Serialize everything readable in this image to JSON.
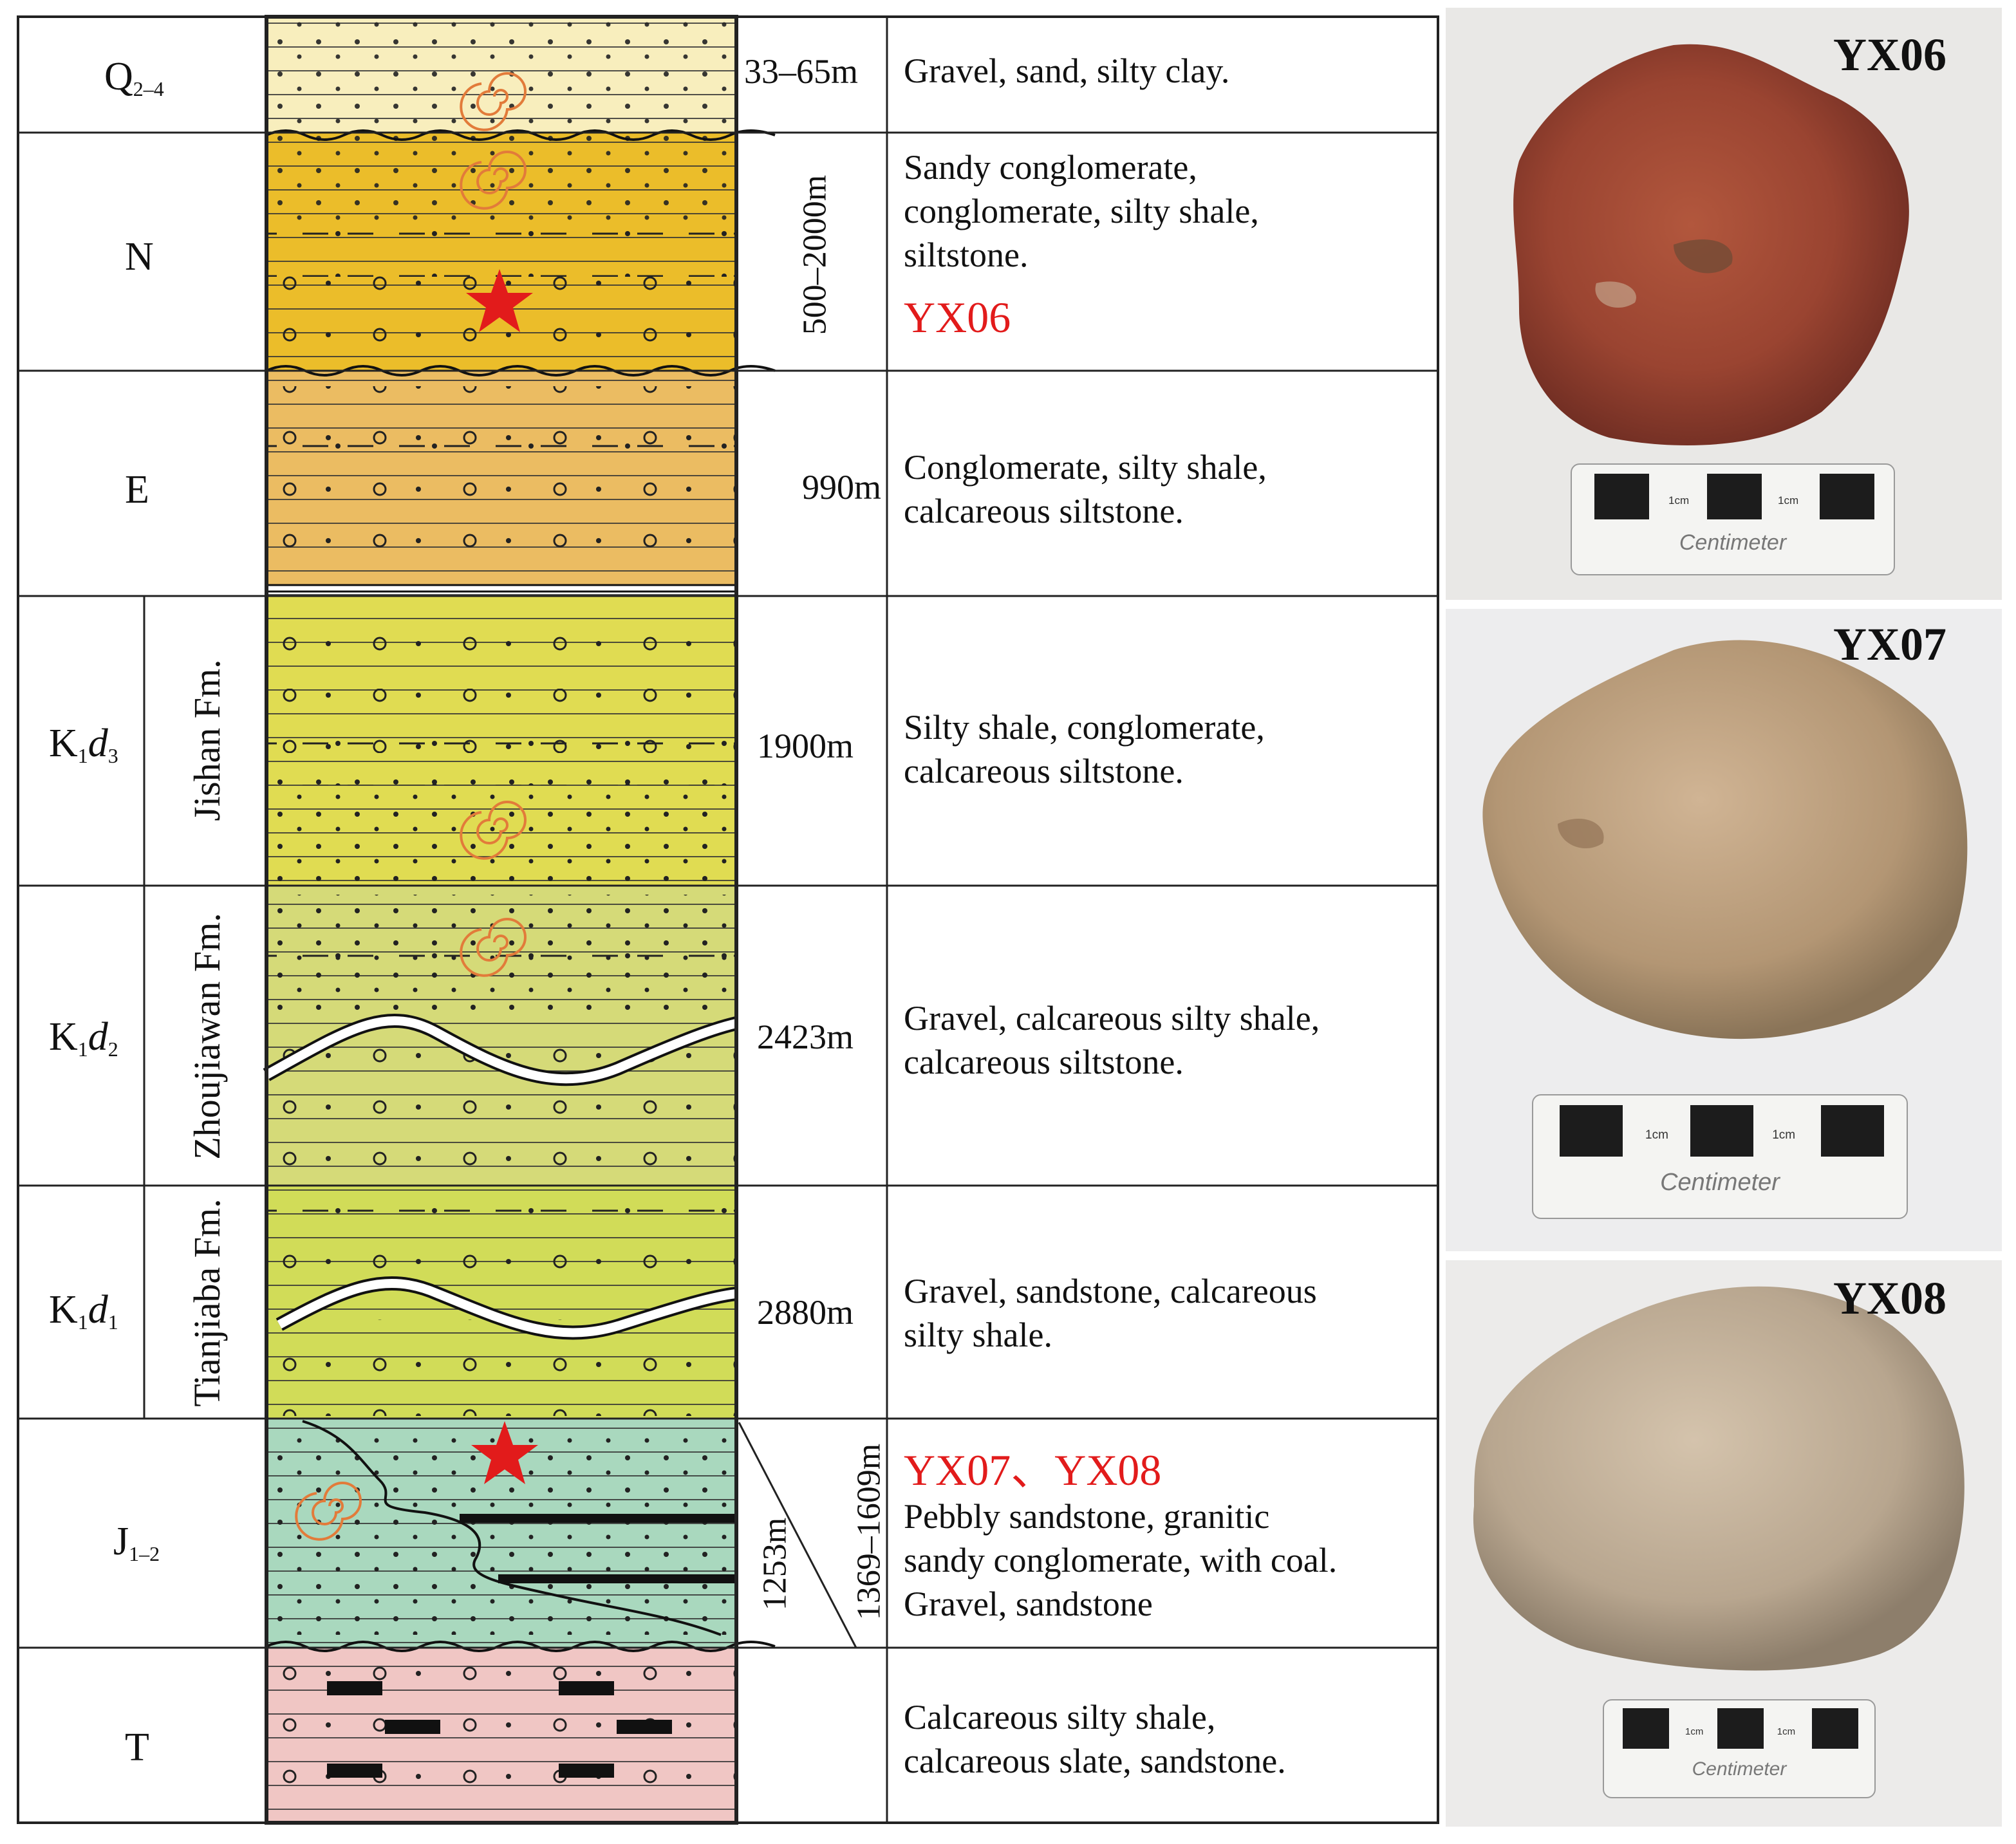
{
  "column": {
    "rows": [
      {
        "id": "q",
        "era": "Q",
        "era_sub": "2–4",
        "thickness": "33–65m",
        "desc": "Gravel, sand, silty clay.",
        "color": "#f8eebd"
      },
      {
        "id": "n",
        "era": "N",
        "era_sub": "",
        "thickness": "500–2000m",
        "desc": "Sandy conglomerate,\nconglomerate, silty shale,\nsiltstone.",
        "sample": "YX06",
        "color": "#ebbd2a"
      },
      {
        "id": "e",
        "era": "E",
        "era_sub": "",
        "thickness": "990m",
        "desc": "Conglomerate, silty shale,\ncalcareous siltstone.",
        "color": "#ebbc62"
      },
      {
        "id": "k3",
        "era": "K",
        "era_sub": "1",
        "era_tail": "d",
        "era_tail_sub": "3",
        "formation": "Jishan\nFm.",
        "thickness": "1900m",
        "desc": "Silty shale, conglomerate,\ncalcareous siltstone.",
        "color": "#e0dc52"
      },
      {
        "id": "k2",
        "era": "K",
        "era_sub": "1",
        "era_tail": "d",
        "era_tail_sub": "2",
        "formation": "Zhoujiawan\nFm.",
        "thickness": "2423m",
        "desc": "Gravel, calcareous silty shale,\ncalcareous siltstone.",
        "color": "#d5da78"
      },
      {
        "id": "k1",
        "era": "K",
        "era_sub": "1",
        "era_tail": "d",
        "era_tail_sub": "1",
        "formation": "Tianjiaba\nFm.",
        "thickness": "2880m",
        "desc": "Gravel, sandstone, calcareous\nsilty shale.",
        "color": "#d1dc58"
      },
      {
        "id": "j",
        "era": "J",
        "era_sub": "1–2",
        "thickness": "1253m",
        "thickness2": "1369–1609m",
        "sample": "YX07、YX08",
        "desc": "Pebbly sandstone, granitic\nsandy conglomerate, with coal.\nGravel, sandstone",
        "color": "#a9d8be"
      },
      {
        "id": "t",
        "era": "T",
        "era_sub": "",
        "thickness": "",
        "desc": "Calcareous silty shale,\ncalcareous slate, sandstone.",
        "color": "#f0c6c4"
      }
    ]
  },
  "photos": [
    {
      "label": "YX06",
      "scale_unit": "1cm",
      "scale_text": "Centimeter",
      "rock_color": "#9d4634",
      "bg": "#e9e8e6"
    },
    {
      "label": "YX07",
      "scale_unit": "1cm",
      "scale_text": "Centimeter",
      "rock_color": "#bfa184",
      "bg": "#ededee"
    },
    {
      "label": "YX08",
      "scale_unit": "1cm",
      "scale_text": "Centimeter",
      "rock_color": "#c4b19a",
      "bg": "#ecebea"
    }
  ],
  "colors": {
    "marker": "#e21b1b",
    "fossil": "#e27b3a",
    "line": "#222222"
  }
}
